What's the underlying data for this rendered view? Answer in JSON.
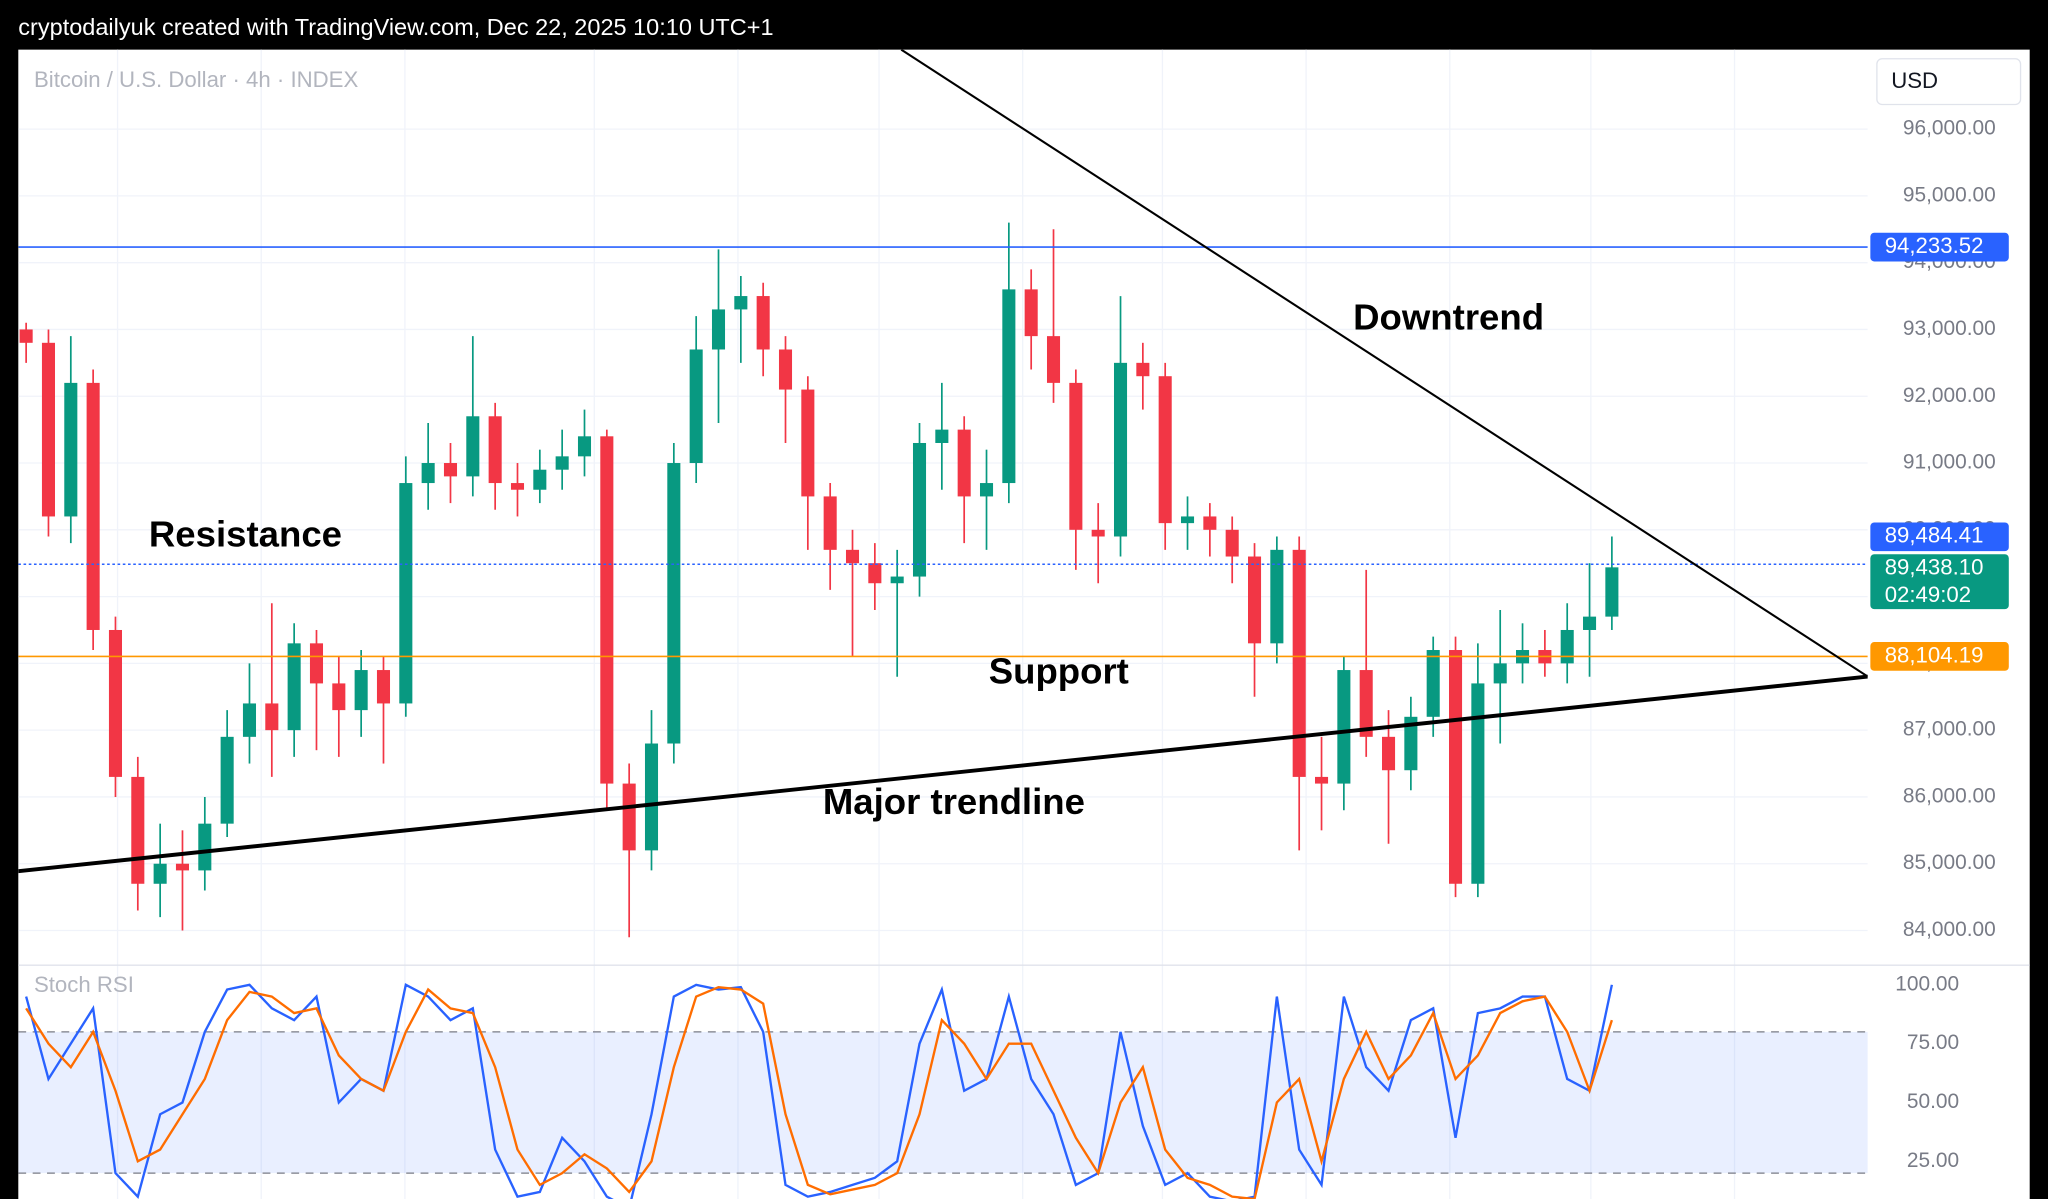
{
  "header": {
    "text": "cryptodailyuk created with TradingView.com, Dec 22, 2025 10:10 UTC+1"
  },
  "chart_data": [
    {
      "type": "candlestick",
      "title": "Bitcoin / U.S. Dollar · 4h · INDEX",
      "currency": "USD",
      "up_color": "#089981",
      "down_color": "#f23645",
      "open": [
        93000,
        92800,
        90200,
        92200,
        88500,
        86300,
        84700,
        85000,
        84900,
        85600,
        86900,
        87400,
        87000,
        88300,
        87700,
        87300,
        87900,
        87400,
        90700,
        91000,
        90800,
        91700,
        90700,
        90600,
        90900,
        91100,
        91400,
        86200,
        85200,
        86800,
        91000,
        92700,
        93300,
        93500,
        92700,
        92100,
        90500,
        89700,
        89500,
        89200,
        89300,
        91300,
        91500,
        90500,
        90700,
        93600,
        92900,
        92200,
        90000,
        89900,
        92500,
        92300,
        90100,
        90200,
        90000,
        89600,
        88300,
        89700,
        86300,
        86200,
        87900,
        86900,
        86400,
        87200,
        88200,
        84700,
        87700,
        88000,
        88200,
        88000,
        88500,
        88700
      ],
      "high": [
        93100,
        93000,
        92900,
        92400,
        88700,
        86600,
        85600,
        85500,
        86000,
        87300,
        88000,
        88900,
        88600,
        88500,
        88100,
        88200,
        88100,
        91100,
        91600,
        91300,
        92900,
        91900,
        91000,
        91200,
        91500,
        91800,
        91500,
        86500,
        87300,
        91300,
        93200,
        94200,
        93800,
        93700,
        92900,
        92300,
        90700,
        90000,
        89800,
        89700,
        91600,
        92200,
        91700,
        91200,
        94600,
        93900,
        94500,
        92400,
        90400,
        93500,
        92800,
        92500,
        90500,
        90400,
        90200,
        89800,
        89900,
        89900,
        86900,
        88100,
        89400,
        87300,
        87500,
        88400,
        88400,
        88300,
        88800,
        88600,
        88500,
        88900,
        89500,
        89900
      ],
      "low": [
        92500,
        89900,
        89800,
        88200,
        86000,
        84300,
        84200,
        84000,
        84600,
        85400,
        86500,
        86300,
        86600,
        86700,
        86600,
        86900,
        86500,
        87200,
        90300,
        90400,
        90500,
        90300,
        90200,
        90400,
        90600,
        90800,
        85800,
        83900,
        84900,
        86500,
        90700,
        91600,
        92500,
        92300,
        91300,
        89700,
        89100,
        88100,
        88800,
        87800,
        89000,
        90600,
        89800,
        89700,
        90400,
        92400,
        91900,
        89400,
        89200,
        89600,
        91800,
        89700,
        89700,
        89600,
        89200,
        87500,
        88000,
        85200,
        85500,
        85800,
        86600,
        85300,
        86100,
        86900,
        84500,
        84500,
        86800,
        87700,
        87800,
        87700,
        87800,
        88500
      ],
      "close": [
        92800,
        90200,
        92200,
        88500,
        86300,
        84700,
        85000,
        84900,
        85600,
        86900,
        87400,
        87000,
        88300,
        87700,
        87300,
        87900,
        87400,
        90700,
        91000,
        90800,
        91700,
        90700,
        90600,
        90900,
        91100,
        91400,
        86200,
        85200,
        86800,
        91000,
        92700,
        93300,
        93500,
        92700,
        92100,
        90500,
        89700,
        89500,
        89200,
        89300,
        91300,
        91500,
        90500,
        90700,
        93600,
        92900,
        92200,
        90000,
        89900,
        92500,
        92300,
        90100,
        90200,
        90000,
        89600,
        88300,
        89700,
        86300,
        86200,
        87900,
        86900,
        86400,
        87200,
        88200,
        84700,
        87700,
        88000,
        88200,
        88000,
        88500,
        88700,
        89438.1
      ],
      "ylim": [
        83500,
        97190
      ],
      "yticks": [
        {
          "value": 84000,
          "label": "84,000.00"
        },
        {
          "value": 85000,
          "label": "85,000.00"
        },
        {
          "value": 86000,
          "label": "86,000.00"
        },
        {
          "value": 87000,
          "label": "87,000.00"
        },
        {
          "value": 88000,
          "label": "88,000.00"
        },
        {
          "value": 89000,
          "label": "89,000.00"
        },
        {
          "value": 90000,
          "label": "90,000.00"
        },
        {
          "value": 91000,
          "label": "91,000.00"
        },
        {
          "value": 92000,
          "label": "92,000.00"
        },
        {
          "value": 93000,
          "label": "93,000.00"
        },
        {
          "value": 94000,
          "label": "94,000.00"
        },
        {
          "value": 95000,
          "label": "95,000.00"
        },
        {
          "value": 96000,
          "label": "96,000.00"
        }
      ],
      "grid": true,
      "price_lines": [
        {
          "value": 94233.52,
          "label": "94,233.52",
          "color": "#2962ff",
          "line": "solid"
        },
        {
          "value": 89484.41,
          "label": "89,484.41",
          "color": "#2962ff",
          "line": "dotted"
        },
        {
          "value": 89438.1,
          "label": "89,438.10",
          "sublabel": "02:49:02",
          "color": "#089981",
          "line": "none"
        },
        {
          "value": 88104.19,
          "label": "88,104.19",
          "color": "#ff9800",
          "line": "solid"
        }
      ],
      "annotations": [
        {
          "text": "Resistance"
        },
        {
          "text": "Support"
        },
        {
          "text": "Downtrend"
        },
        {
          "text": "Major trendline"
        }
      ]
    },
    {
      "type": "line",
      "title": "Stoch RSI",
      "series": [
        {
          "color": "#2962ff",
          "values": [
            95,
            60,
            75,
            90,
            20,
            10,
            45,
            50,
            80,
            98,
            100,
            90,
            85,
            95,
            50,
            60,
            55,
            100,
            95,
            85,
            90,
            30,
            10,
            12,
            35,
            25,
            10,
            5,
            45,
            95,
            100,
            98,
            99,
            80,
            15,
            10,
            12,
            15,
            18,
            25,
            75,
            98,
            55,
            60,
            95,
            60,
            45,
            15,
            20,
            80,
            40,
            15,
            20,
            10,
            8,
            10,
            95,
            30,
            15,
            95,
            65,
            55,
            85,
            90,
            35,
            88,
            90,
            95,
            95,
            60,
            55,
            100
          ]
        },
        {
          "color": "#ff6d00",
          "values": [
            90,
            75,
            65,
            80,
            55,
            25,
            30,
            45,
            60,
            85,
            97,
            95,
            88,
            90,
            70,
            60,
            55,
            80,
            98,
            90,
            88,
            65,
            30,
            15,
            20,
            28,
            22,
            12,
            25,
            65,
            95,
            99,
            98,
            92,
            45,
            15,
            11,
            13,
            15,
            20,
            45,
            85,
            75,
            60,
            75,
            75,
            55,
            35,
            20,
            50,
            65,
            30,
            18,
            15,
            10,
            9,
            50,
            60,
            25,
            60,
            80,
            60,
            70,
            88,
            60,
            70,
            88,
            93,
            95,
            80,
            55,
            85
          ]
        }
      ],
      "ylim": [
        9,
        105
      ],
      "yticks": [
        {
          "value": 25,
          "label": "25.00"
        },
        {
          "value": 50,
          "label": "50.00"
        },
        {
          "value": 75,
          "label": "75.00"
        },
        {
          "value": 100,
          "label": "100.00"
        }
      ],
      "bands": [
        20,
        80
      ]
    }
  ]
}
